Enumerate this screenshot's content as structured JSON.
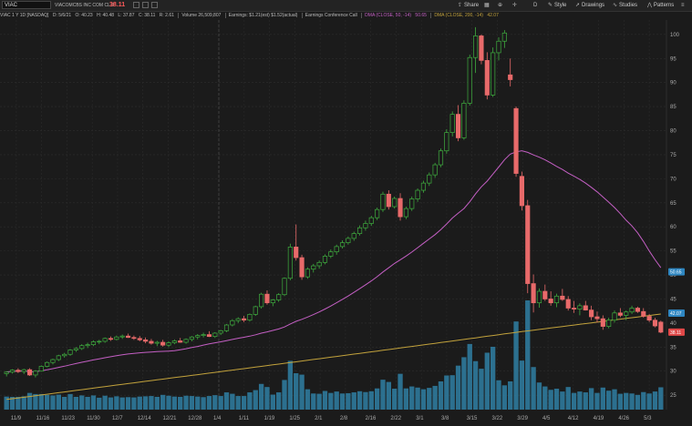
{
  "toolbar": {
    "symbol": "VIAC",
    "company": "VIACOMCBS INC COM CL B",
    "last_price": "38.11",
    "buttons": [
      {
        "label": "Share",
        "icon": "share-icon"
      },
      {
        "label": "Style",
        "icon": "style-icon"
      },
      {
        "label": "Drawings",
        "icon": "drawings-icon"
      },
      {
        "label": "Studies",
        "icon": "studies-icon"
      },
      {
        "label": "Patterns",
        "icon": "patterns-icon"
      }
    ]
  },
  "legend": {
    "title": "VIAC 1 Y 1D [NASDAQ]",
    "date": "D: 5/6/21",
    "open": "O: 40.23",
    "high": "H: 40.48",
    "low": "L: 37.87",
    "close": "C: 38.11",
    "range": "R: 2.61",
    "volume": "Volume 26,509,807",
    "earnings": "Earnings: $1.21(est) $1.52(actual)",
    "conference": "Earnings Conference Call",
    "dma50": "DMA (CLOSE, 50, -14)",
    "dma50_value": "50.65",
    "dma200": "DMA (CLOSE, 200, -14)",
    "dma200_value": "42.07"
  },
  "chart_data": {
    "type": "candlestick",
    "x_ticks": [
      "11/9",
      "11/16",
      "11/23",
      "11/30",
      "12/7",
      "12/14",
      "12/21",
      "12/28",
      "1/4",
      "1/11",
      "1/19",
      "1/25",
      "2/1",
      "2/8",
      "2/16",
      "2/22",
      "3/1",
      "3/8",
      "3/15",
      "3/22",
      "3/29",
      "4/5",
      "4/12",
      "4/19",
      "4/26",
      "5/3"
    ],
    "y_ticks": [
      25,
      30,
      35,
      40,
      45,
      50,
      55,
      60,
      65,
      70,
      75,
      80,
      85,
      90,
      95,
      100
    ],
    "ylim": [
      22,
      103
    ],
    "up_color": "#3fae3f",
    "down_color": "#e86a6a",
    "dma50_color": "#c45fc4",
    "dma200_color": "#c2a23c",
    "volume_color": "#2f7fa3",
    "price_tags": [
      {
        "value": "50.65",
        "level": 50.65,
        "color": "#2e86c1"
      },
      {
        "value": "42.07",
        "level": 42.07,
        "color": "#2e86c1"
      },
      {
        "value": "38.11",
        "level": 38.11,
        "color": "#e04848"
      }
    ],
    "candles": [
      [
        29.5,
        30.0,
        28.9,
        29.8
      ],
      [
        29.8,
        30.4,
        29.5,
        30.2
      ],
      [
        30.2,
        30.6,
        29.6,
        29.9
      ],
      [
        29.9,
        30.5,
        29.4,
        30.3
      ],
      [
        30.3,
        30.6,
        29.0,
        29.2
      ],
      [
        29.2,
        30.2,
        28.7,
        30.0
      ],
      [
        30.0,
        31.2,
        29.9,
        31.0
      ],
      [
        31.0,
        32.0,
        30.8,
        31.8
      ],
      [
        31.8,
        32.6,
        31.4,
        32.4
      ],
      [
        32.4,
        33.4,
        32.1,
        33.2
      ],
      [
        33.2,
        33.8,
        32.8,
        33.5
      ],
      [
        33.5,
        34.6,
        33.2,
        34.4
      ],
      [
        34.4,
        35.0,
        34.0,
        34.7
      ],
      [
        34.7,
        35.6,
        34.4,
        35.3
      ],
      [
        35.3,
        35.9,
        34.8,
        35.5
      ],
      [
        35.5,
        36.4,
        35.2,
        36.1
      ],
      [
        36.1,
        36.5,
        35.6,
        36.2
      ],
      [
        36.2,
        37.0,
        35.9,
        36.8
      ],
      [
        36.8,
        37.2,
        36.3,
        36.6
      ],
      [
        36.6,
        37.4,
        36.4,
        37.1
      ],
      [
        37.1,
        37.6,
        36.7,
        37.3
      ],
      [
        37.3,
        37.8,
        36.9,
        37.0
      ],
      [
        37.0,
        37.4,
        36.5,
        36.8
      ],
      [
        36.8,
        37.3,
        36.2,
        36.5
      ],
      [
        36.5,
        37.0,
        35.8,
        36.2
      ],
      [
        36.2,
        36.7,
        35.5,
        35.8
      ],
      [
        35.8,
        36.3,
        35.2,
        36.0
      ],
      [
        36.0,
        36.5,
        35.1,
        35.4
      ],
      [
        35.4,
        36.2,
        35.0,
        35.9
      ],
      [
        35.9,
        36.6,
        35.6,
        36.3
      ],
      [
        36.3,
        36.9,
        35.9,
        36.0
      ],
      [
        36.0,
        36.8,
        35.7,
        36.6
      ],
      [
        36.6,
        37.3,
        36.2,
        37.1
      ],
      [
        37.1,
        37.7,
        36.6,
        37.4
      ],
      [
        37.4,
        38.0,
        37.0,
        37.6
      ],
      [
        37.6,
        38.3,
        37.1,
        37.2
      ],
      [
        37.2,
        38.1,
        36.9,
        37.9
      ],
      [
        37.9,
        38.6,
        37.5,
        38.4
      ],
      [
        38.4,
        39.8,
        38.1,
        39.6
      ],
      [
        39.6,
        40.8,
        39.3,
        40.5
      ],
      [
        40.5,
        41.2,
        40.0,
        40.9
      ],
      [
        40.9,
        41.5,
        40.2,
        40.6
      ],
      [
        40.6,
        42.0,
        40.3,
        41.8
      ],
      [
        41.8,
        43.6,
        41.5,
        43.4
      ],
      [
        43.4,
        46.3,
        43.0,
        46.0
      ],
      [
        46.0,
        46.8,
        43.8,
        44.2
      ],
      [
        44.2,
        45.0,
        43.5,
        44.8
      ],
      [
        44.8,
        46.2,
        44.4,
        45.9
      ],
      [
        45.9,
        49.5,
        45.6,
        49.3
      ],
      [
        49.3,
        56.5,
        48.9,
        55.8
      ],
      [
        55.8,
        60.5,
        53.0,
        53.6
      ],
      [
        53.6,
        54.2,
        49.0,
        49.6
      ],
      [
        49.6,
        51.6,
        49.2,
        51.2
      ],
      [
        51.2,
        52.3,
        50.5,
        51.9
      ],
      [
        51.9,
        53.0,
        51.3,
        52.6
      ],
      [
        52.6,
        54.3,
        52.2,
        53.9
      ],
      [
        53.9,
        55.3,
        53.5,
        54.8
      ],
      [
        54.8,
        56.3,
        54.2,
        55.9
      ],
      [
        55.9,
        57.2,
        55.5,
        56.7
      ],
      [
        56.7,
        58.0,
        56.3,
        57.6
      ],
      [
        57.6,
        59.0,
        57.1,
        58.6
      ],
      [
        58.6,
        60.3,
        58.2,
        59.8
      ],
      [
        59.8,
        61.3,
        59.2,
        60.7
      ],
      [
        60.7,
        62.3,
        60.2,
        61.9
      ],
      [
        61.9,
        64.0,
        61.4,
        63.6
      ],
      [
        63.6,
        67.3,
        63.1,
        66.8
      ],
      [
        66.8,
        67.6,
        63.6,
        64.2
      ],
      [
        64.2,
        66.3,
        63.8,
        65.9
      ],
      [
        65.9,
        67.0,
        61.3,
        62.1
      ],
      [
        62.1,
        64.2,
        61.6,
        63.8
      ],
      [
        63.8,
        66.3,
        63.3,
        65.8
      ],
      [
        65.8,
        68.0,
        65.2,
        67.6
      ],
      [
        67.6,
        69.6,
        67.1,
        69.1
      ],
      [
        69.1,
        71.3,
        68.5,
        70.8
      ],
      [
        70.8,
        73.3,
        70.2,
        72.9
      ],
      [
        72.9,
        76.3,
        72.4,
        75.8
      ],
      [
        75.8,
        80.3,
        75.2,
        79.6
      ],
      [
        79.6,
        84.0,
        78.8,
        83.4
      ],
      [
        83.4,
        85.3,
        77.8,
        78.5
      ],
      [
        78.5,
        86.3,
        78.1,
        85.7
      ],
      [
        85.7,
        95.8,
        85.2,
        95.2
      ],
      [
        95.2,
        101.5,
        92.0,
        99.7
      ],
      [
        99.7,
        100.0,
        93.8,
        94.6
      ],
      [
        94.6,
        96.3,
        86.5,
        87.4
      ],
      [
        87.4,
        97.3,
        87.0,
        96.2
      ],
      [
        96.2,
        99.4,
        94.6,
        98.6
      ],
      [
        98.6,
        100.9,
        97.2,
        100.3
      ],
      [
        91.6,
        95.0,
        89.2,
        90.6
      ],
      [
        84.6,
        85.0,
        70.4,
        71.1
      ],
      [
        70.5,
        71.5,
        63.4,
        64.4
      ],
      [
        64.4,
        65.6,
        46.2,
        48.2
      ],
      [
        48.2,
        50.1,
        42.2,
        44.2
      ],
      [
        44.2,
        47.2,
        43.2,
        46.6
      ],
      [
        46.6,
        48.0,
        44.6,
        45.0
      ],
      [
        45.0,
        46.6,
        43.6,
        44.2
      ],
      [
        44.2,
        46.1,
        43.3,
        45.6
      ],
      [
        45.6,
        47.1,
        44.6,
        44.9
      ],
      [
        44.9,
        45.6,
        42.6,
        43.1
      ],
      [
        43.1,
        44.6,
        42.1,
        42.9
      ],
      [
        42.9,
        44.1,
        41.6,
        43.6
      ],
      [
        43.6,
        44.6,
        42.6,
        42.7
      ],
      [
        42.7,
        43.6,
        40.6,
        41.3
      ],
      [
        41.3,
        42.4,
        40.1,
        40.9
      ],
      [
        40.9,
        41.6,
        38.6,
        39.3
      ],
      [
        39.3,
        41.1,
        38.9,
        40.6
      ],
      [
        40.6,
        42.6,
        40.1,
        42.1
      ],
      [
        42.1,
        43.1,
        41.2,
        41.6
      ],
      [
        41.6,
        42.6,
        40.6,
        42.3
      ],
      [
        42.3,
        43.6,
        41.9,
        43.1
      ],
      [
        43.1,
        43.4,
        42.1,
        42.4
      ],
      [
        42.4,
        43.1,
        41.1,
        41.4
      ],
      [
        41.4,
        41.9,
        40.2,
        40.6
      ],
      [
        40.6,
        41.1,
        39.1,
        39.4
      ],
      [
        40.2,
        40.5,
        37.9,
        38.1
      ]
    ]
  }
}
